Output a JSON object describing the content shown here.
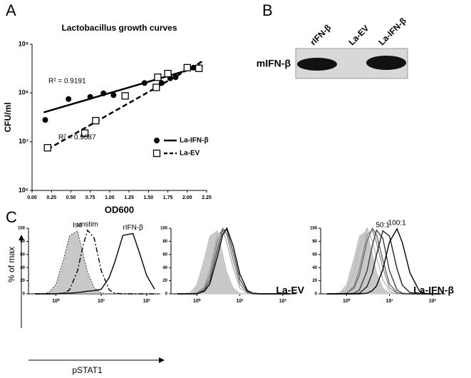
{
  "panel_labels": [
    "A",
    "B",
    "C"
  ],
  "blot": {
    "lanes": [
      "rIFN-β",
      "La-EV",
      "La-IFN-β"
    ],
    "row_label": "mIFN-β"
  },
  "chart_data": [
    {
      "type": "scatter",
      "title": "Lactobacillus growth curves",
      "x_label": "OD600",
      "y_label": "CFU/ml",
      "ylog": true,
      "xlim": [
        0,
        2.25
      ],
      "ylim": [
        1000000,
        1000000000
      ],
      "xticks": [
        {
          "value": 0,
          "label": "0.00"
        },
        {
          "value": 0.25,
          "label": "0.25"
        },
        {
          "value": 0.5,
          "label": "0.50"
        },
        {
          "value": 0.75,
          "label": "0.75"
        },
        {
          "value": 1,
          "label": "1.00"
        },
        {
          "value": 1.25,
          "label": "1.25"
        },
        {
          "value": 1.5,
          "label": "1.50"
        },
        {
          "value": 1.75,
          "label": "1.75"
        },
        {
          "value": 2,
          "label": "2.00"
        },
        {
          "value": 2.25,
          "label": "2.25"
        }
      ],
      "yticks": [
        {
          "value": 1000000,
          "label": "10⁶"
        },
        {
          "value": 10000000,
          "label": "10⁷"
        },
        {
          "value": 100000000,
          "label": "10⁸"
        },
        {
          "value": 1000000000,
          "label": "10⁹"
        }
      ],
      "legend": "lower right",
      "series": [
        {
          "name": "La-IFN-β",
          "color": "#000000",
          "marker": "circle",
          "dash": false,
          "x": [
            0.17,
            0.47,
            0.75,
            0.92,
            1.05,
            1.45,
            1.67,
            1.78,
            1.85,
            2.08,
            2.15
          ],
          "values": [
            28000000,
            75000000,
            83000000,
            98000000,
            90000000,
            160000000,
            160000000,
            200000000,
            210000000,
            330000000,
            340000000
          ],
          "fit": {
            "x": [
              0.15,
              2.2
            ],
            "values": [
              40000000,
              360000000
            ]
          },
          "annotation": "R² = 0.9191"
        },
        {
          "name": "La-EV",
          "color": "#000000",
          "marker": "square",
          "dash": true,
          "x": [
            0.2,
            0.68,
            0.82,
            1.2,
            1.6,
            1.62,
            1.75,
            2.0,
            2.15
          ],
          "values": [
            7500000,
            15000000,
            27000000,
            87000000,
            130000000,
            210000000,
            250000000,
            330000000,
            320000000
          ],
          "fit": {
            "x": [
              0.2,
              2.2
            ],
            "values": [
              7000000,
              450000000
            ]
          },
          "annotation": "R² = 0.9687"
        }
      ]
    },
    {
      "type": "line",
      "x_label": "pSTAT1",
      "y_label": "% of max",
      "xlog": true,
      "xlim": [
        0.25,
        200
      ],
      "ylim": [
        0,
        100
      ],
      "xticks": [
        {
          "value": 1,
          "label": "10⁰"
        },
        {
          "value": 10,
          "label": "10¹"
        },
        {
          "value": 100,
          "label": "10²"
        }
      ],
      "yticks": [
        0,
        20,
        40,
        60,
        80,
        100
      ],
      "x": [
        0.35,
        0.5,
        0.7,
        1,
        1.5,
        2,
        3,
        4,
        5,
        7,
        10,
        15,
        20,
        30,
        50,
        70,
        100,
        150
      ],
      "series": [
        {
          "name": "Iso",
          "color": "#c8c8c8",
          "fill": true,
          "dash": "dotted",
          "values": [
            0,
            0,
            2,
            14,
            54,
            88,
            96,
            60,
            33,
            9,
            1,
            0,
            0,
            0,
            0,
            0,
            0,
            0
          ]
        },
        {
          "name": "unstim",
          "color": "#000000",
          "fill": false,
          "dash": "dashdot",
          "values": [
            0,
            0,
            0,
            0,
            1,
            6,
            35,
            74,
            97,
            85,
            35,
            6,
            1,
            0,
            0,
            0,
            0,
            0
          ]
        },
        {
          "name": "rIFN-β",
          "color": "#000000",
          "fill": false,
          "dash": "solid",
          "values": [
            0,
            0,
            0,
            0,
            1,
            1,
            2,
            3,
            4,
            5,
            7,
            25,
            49,
            89,
            92,
            62,
            28,
            7
          ]
        }
      ]
    },
    {
      "type": "line",
      "title": "La-EV",
      "xlog": true,
      "xlim": [
        0.25,
        200
      ],
      "ylim": [
        0,
        100
      ],
      "xticks": [
        {
          "value": 1,
          "label": "10⁰"
        },
        {
          "value": 10,
          "label": "10¹"
        },
        {
          "value": 100,
          "label": "10²"
        }
      ],
      "yticks": [
        0,
        20,
        40,
        60,
        80,
        100
      ],
      "x": [
        0.35,
        0.5,
        0.7,
        1,
        1.5,
        2,
        3,
        4,
        5,
        7,
        10,
        15,
        20,
        30,
        50,
        70,
        100,
        150
      ],
      "series": [
        {
          "color": "#c8c8c8",
          "fill": true,
          "dash": "solid",
          "values": [
            0,
            0,
            2,
            14,
            54,
            88,
            96,
            60,
            33,
            9,
            1,
            0,
            0,
            0,
            0,
            0,
            0,
            0
          ]
        },
        {
          "color": "#b0b0b0",
          "fill": false,
          "dash": "solid",
          "values": [
            0,
            0,
            0,
            1,
            12,
            38,
            90,
            97,
            78,
            40,
            9,
            1,
            0,
            0,
            0,
            0,
            0,
            0
          ]
        },
        {
          "color": "#808080",
          "fill": false,
          "dash": "solid",
          "values": [
            0,
            0,
            0,
            1,
            9,
            29,
            80,
            100,
            90,
            52,
            15,
            2,
            0,
            0,
            0,
            0,
            0,
            0
          ]
        },
        {
          "color": "#505050",
          "fill": false,
          "dash": "solid",
          "values": [
            0,
            0,
            0,
            0,
            6,
            21,
            68,
            97,
            97,
            63,
            22,
            3,
            1,
            0,
            0,
            0,
            0,
            0
          ]
        },
        {
          "color": "#000000",
          "fill": false,
          "dash": "solid",
          "values": [
            0,
            0,
            0,
            0,
            4,
            15,
            57,
            90,
            100,
            73,
            30,
            5,
            1,
            0,
            0,
            0,
            0,
            0
          ]
        }
      ]
    },
    {
      "type": "line",
      "title": "La-IFN-β",
      "xlog": true,
      "xlim": [
        0.25,
        200
      ],
      "ylim": [
        0,
        100
      ],
      "xticks": [
        {
          "value": 1,
          "label": "10⁰"
        },
        {
          "value": 10,
          "label": "10¹"
        },
        {
          "value": 100,
          "label": "10²"
        }
      ],
      "yticks": [
        0,
        20,
        40,
        60,
        80,
        100
      ],
      "x": [
        0.35,
        0.5,
        0.7,
        1,
        1.5,
        2,
        3,
        4,
        5,
        7,
        10,
        15,
        20,
        30,
        50,
        70,
        100,
        150
      ],
      "series": [
        {
          "color": "#c8c8c8",
          "fill": true,
          "dash": "solid",
          "values": [
            0,
            0,
            2,
            14,
            54,
            88,
            96,
            60,
            33,
            9,
            1,
            0,
            0,
            0,
            0,
            0,
            0,
            0
          ]
        },
        {
          "color": "#b8b8b8",
          "fill": false,
          "dash": "solid",
          "values": [
            0,
            0,
            1,
            5,
            33,
            70,
            100,
            80,
            56,
            22,
            4,
            0,
            0,
            0,
            0,
            0,
            0,
            0
          ]
        },
        {
          "color": "#909090",
          "fill": false,
          "dash": "solid",
          "values": [
            0,
            0,
            0,
            1,
            12,
            38,
            90,
            97,
            78,
            40,
            9,
            1,
            0,
            0,
            0,
            0,
            0,
            0
          ]
        },
        {
          "color": "#686868",
          "fill": false,
          "dash": "solid",
          "values": [
            0,
            0,
            0,
            1,
            9,
            29,
            80,
            100,
            90,
            52,
            15,
            2,
            0,
            0,
            0,
            0,
            0,
            0
          ]
        },
        {
          "color": "#404040",
          "fill": false,
          "dash": "solid",
          "values": [
            0,
            0,
            0,
            0,
            1,
            6,
            35,
            74,
            97,
            85,
            35,
            6,
            1,
            0,
            0,
            0,
            0,
            0
          ]
        },
        {
          "name": "50:1",
          "color": "#202020",
          "fill": false,
          "dash": "solid",
          "values": [
            0,
            0,
            0,
            0,
            0,
            1,
            11,
            32,
            60,
            96,
            88,
            38,
            13,
            2,
            0,
            0,
            0,
            0
          ]
        },
        {
          "name": "100:1",
          "color": "#000000",
          "fill": false,
          "dash": "solid",
          "values": [
            0,
            0,
            0,
            0,
            0,
            0,
            1,
            5,
            12,
            37,
            79,
            99,
            78,
            32,
            4,
            0,
            0,
            0
          ]
        }
      ]
    }
  ]
}
